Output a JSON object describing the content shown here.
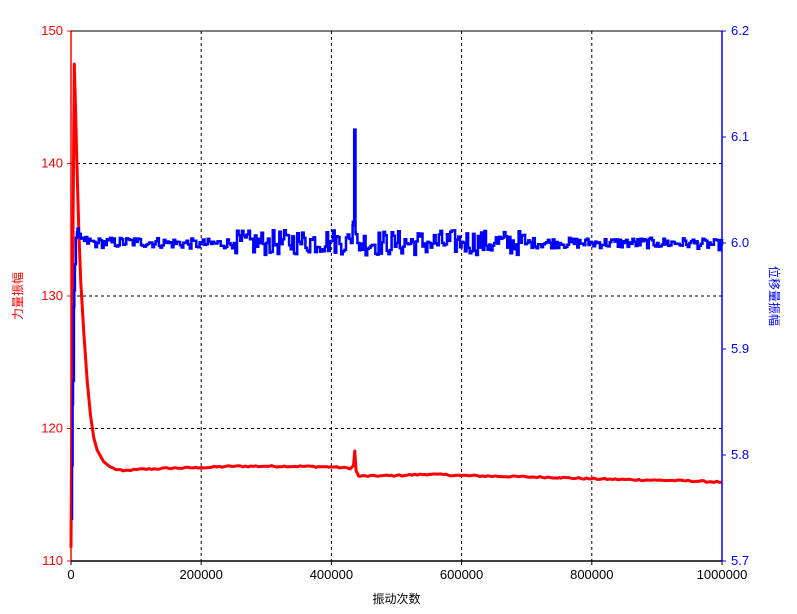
{
  "chart_data": {
    "type": "line",
    "title": "",
    "xlabel": "振动次数",
    "ylabel_left": "力量振幅",
    "ylabel_right": "位移量振幅",
    "xlim": [
      0,
      1000000
    ],
    "ylim_left": [
      110,
      150
    ],
    "ylim_right": [
      5.7,
      6.2
    ],
    "x_ticks": [
      0,
      200000,
      400000,
      600000,
      800000,
      1000000
    ],
    "x_tick_labels": [
      "0",
      "200000",
      "400000",
      "600000",
      "800000",
      "1000000"
    ],
    "y_left_ticks": [
      110,
      120,
      130,
      140,
      150
    ],
    "y_left_tick_labels": [
      "110",
      "120",
      "130",
      "140",
      "150"
    ],
    "y_right_ticks": [
      5.7,
      5.8,
      5.9,
      6.0,
      6.1,
      6.2
    ],
    "y_right_tick_labels": [
      "5.7",
      "5.8",
      "5.9",
      "6.0",
      "6.1",
      "6.2"
    ],
    "grid": true,
    "grid_style": "dashed",
    "series": [
      {
        "name": "",
        "axis": "left",
        "color": "#ff0000",
        "points": [
          [
            0,
            111
          ],
          [
            2000,
            128
          ],
          [
            4000,
            141
          ],
          [
            5000,
            147.5
          ],
          [
            7000,
            144
          ],
          [
            9000,
            140
          ],
          [
            12000,
            135
          ],
          [
            15000,
            131
          ],
          [
            20000,
            127
          ],
          [
            25000,
            123.5
          ],
          [
            30000,
            121
          ],
          [
            35000,
            119.3
          ],
          [
            40000,
            118.4
          ],
          [
            50000,
            117.5
          ],
          [
            60000,
            117.1
          ],
          [
            70000,
            116.9
          ],
          [
            80000,
            116.8
          ],
          [
            100000,
            116.9
          ],
          [
            150000,
            117.0
          ],
          [
            200000,
            117.05
          ],
          [
            250000,
            117.15
          ],
          [
            300000,
            117.15
          ],
          [
            350000,
            117.15
          ],
          [
            400000,
            117.1
          ],
          [
            430000,
            117.0
          ],
          [
            434000,
            117.2
          ],
          [
            436000,
            118.3
          ],
          [
            438000,
            116.8
          ],
          [
            442000,
            116.4
          ],
          [
            500000,
            116.45
          ],
          [
            550000,
            116.55
          ],
          [
            600000,
            116.45
          ],
          [
            650000,
            116.4
          ],
          [
            700000,
            116.35
          ],
          [
            750000,
            116.3
          ],
          [
            800000,
            116.2
          ],
          [
            850000,
            116.15
          ],
          [
            900000,
            116.1
          ],
          [
            950000,
            116.05
          ],
          [
            1000000,
            115.95
          ]
        ]
      },
      {
        "name": "",
        "axis": "right",
        "color": "#0000ff",
        "points": [
          [
            0,
            5.74
          ],
          [
            1500,
            5.79
          ],
          [
            3000,
            5.87
          ],
          [
            4500,
            5.94
          ],
          [
            6000,
            5.98
          ],
          [
            7500,
            6.005
          ],
          [
            9000,
            6.01
          ],
          [
            12000,
            6.006
          ],
          [
            20000,
            6.002
          ],
          [
            40000,
            6.0
          ],
          [
            100000,
            6.001
          ],
          [
            150000,
            6.0
          ],
          [
            200000,
            5.999
          ],
          [
            250000,
            6.0
          ],
          [
            300000,
            6.0
          ],
          [
            350000,
            6.001
          ],
          [
            400000,
            6.002
          ],
          [
            430000,
            6.0
          ],
          [
            433000,
            6.02
          ],
          [
            435000,
            6.107
          ],
          [
            437000,
            6.01
          ],
          [
            440000,
            6.0
          ],
          [
            500000,
            6.0
          ],
          [
            550000,
            6.0
          ],
          [
            600000,
            6.001
          ],
          [
            650000,
            6.0
          ],
          [
            700000,
            6.0
          ],
          [
            750000,
            6.0
          ],
          [
            800000,
            6.0
          ],
          [
            850000,
            6.0
          ],
          [
            900000,
            6.0
          ],
          [
            950000,
            6.0
          ],
          [
            1000000,
            5.998
          ]
        ],
        "noise_amplitude_by_range": [
          {
            "x": [
              0,
              250000
            ],
            "amp": 0.005
          },
          {
            "x": [
              250000,
              430000
            ],
            "amp": 0.012
          },
          {
            "x": [
              440000,
              700000
            ],
            "amp": 0.012
          },
          {
            "x": [
              700000,
              1000000
            ],
            "amp": 0.005
          }
        ]
      }
    ]
  },
  "colors": {
    "left_axis": "#ff0000",
    "right_axis": "#0000ff",
    "bottom_axis": "#000000",
    "grid": "#000000"
  }
}
